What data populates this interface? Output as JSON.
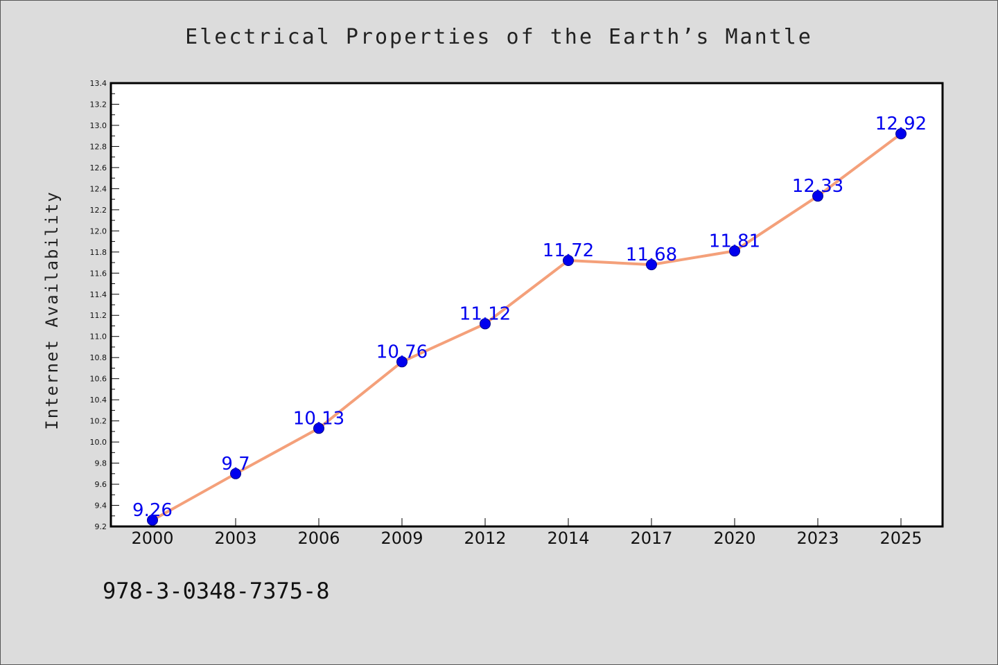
{
  "chart_data": {
    "type": "line",
    "title": "Electrical Properties of the Earth’s Mantle",
    "xlabel": "",
    "ylabel": "Internet Availability",
    "categories": [
      "2000",
      "2003",
      "2006",
      "2009",
      "2012",
      "2014",
      "2017",
      "2020",
      "2023",
      "2025"
    ],
    "series": [
      {
        "values": [
          9.26,
          9.7,
          10.13,
          10.76,
          11.12,
          11.72,
          11.68,
          11.81,
          12.33,
          12.92
        ],
        "labels": [
          "9.26",
          "9.7",
          "10.13",
          "10.76",
          "11.12",
          "11.72",
          "11.68",
          "11.81",
          "12.33",
          "12.92"
        ]
      }
    ],
    "ylim": [
      9.2,
      13.4
    ],
    "yticks": [
      "9.2",
      "9.4",
      "9.6",
      "9.8",
      "10.0",
      "10.2",
      "10.4",
      "10.6",
      "10.8",
      "11.0",
      "11.2",
      "11.4",
      "11.6",
      "11.8",
      "12.0",
      "12.2",
      "12.4",
      "12.6",
      "12.8",
      "13.0",
      "13.2",
      "13.4"
    ],
    "grid": false,
    "legend": "none",
    "colors": {
      "line": "#f4a07a",
      "marker": "#0000ee",
      "data_label": "#0000ee",
      "background": "#dcdcdc",
      "plot_area": "#ffffff"
    }
  },
  "footer": {
    "code": "978-3-0348-7375-8"
  }
}
